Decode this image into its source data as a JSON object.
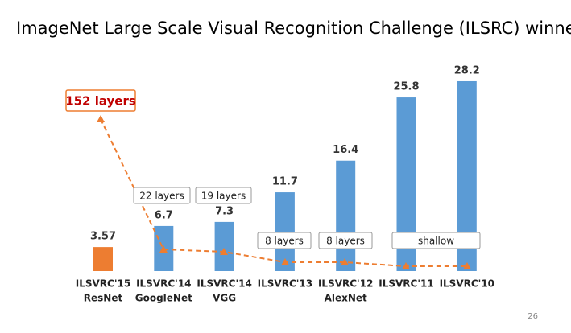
{
  "chart_data": {
    "type": "bar",
    "title": "ImageNet Large Scale Visual Recognition Challenge (ILSRC) winners",
    "categories": [
      "ILSVRC'15",
      "ILSVRC'14",
      "ILSVRC'14",
      "ILSVRC'13",
      "ILSVRC'12",
      "ILSVRC'11",
      "ILSVRC'10"
    ],
    "models": [
      "ResNet",
      "GoogleNet",
      "VGG",
      null,
      "AlexNet",
      null,
      null
    ],
    "values": [
      3.57,
      6.7,
      7.3,
      11.7,
      16.4,
      25.8,
      28.2
    ],
    "colors": [
      "#ed7d31",
      "#5b9bd5",
      "#5b9bd5",
      "#5b9bd5",
      "#5b9bd5",
      "#5b9bd5",
      "#5b9bd5"
    ],
    "layer_labels": [
      "152 layers",
      "22 layers",
      "19 layers",
      "8 layers",
      "8 layers",
      "shallow"
    ],
    "trend_color": "#ed7d31"
  },
  "page_number": "26"
}
